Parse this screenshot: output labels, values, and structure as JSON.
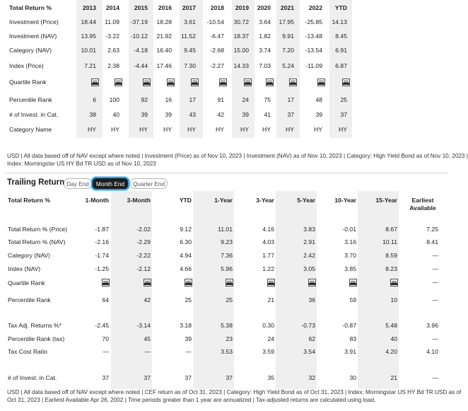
{
  "annual": {
    "header": [
      "Total Return %",
      "2013",
      "2014",
      "2015",
      "2016",
      "2017",
      "2018",
      "2019",
      "2020",
      "2021",
      "2022",
      "YTD"
    ],
    "rows": [
      {
        "label": "Investment (Price)",
        "values": [
          "18.44",
          "11.09",
          "-37.19",
          "18.28",
          "3.61",
          "-10.54",
          "30.72",
          "3.64",
          "17.95",
          "-25.85",
          "14.13"
        ]
      },
      {
        "label": "Investment (NAV)",
        "values": [
          "13.95",
          "-3.22",
          "-10.12",
          "21.92",
          "11.52",
          "-6.47",
          "18.37",
          "1.82",
          "9.91",
          "-13.48",
          "8.45"
        ]
      },
      {
        "label": "Category (NAV)",
        "values": [
          "10.01",
          "2.63",
          "-4.18",
          "16.40",
          "9.45",
          "-2.68",
          "15.00",
          "3.74",
          "7.20",
          "-13.54",
          "6.91"
        ]
      },
      {
        "label": "Index (Price)",
        "values": [
          "7.21",
          "2.38",
          "-4.44",
          "17.46",
          "7.30",
          "-2.27",
          "14.33",
          "7.03",
          "5.24",
          "-11.09",
          "6.87"
        ]
      },
      {
        "label": "Quartile Rank",
        "quartile": true
      },
      {
        "label": "Percentile Rank",
        "values": [
          "6",
          "100",
          "92",
          "16",
          "17",
          "91",
          "24",
          "75",
          "17",
          "48",
          "25"
        ]
      },
      {
        "label": "# of Invest. in Cat.",
        "values": [
          "38",
          "40",
          "39",
          "39",
          "43",
          "42",
          "39",
          "41",
          "37",
          "39",
          "37"
        ]
      },
      {
        "label": "Category Name",
        "values": [
          "HY",
          "HY",
          "HY",
          "HY",
          "HY",
          "HY",
          "HY",
          "HY",
          "HY",
          "HY",
          "HY"
        ]
      }
    ],
    "note_line1": "USD | All data based off of NAV except where noted | Investment (Price) as of Nov 10, 2023 | Investment (NAV) as of Nov 10, 2023 | Category: High Yield Bond as of Nov 10, 2023 |",
    "note_line2": "Index: Morningstar US HY Bd TR USD as of Nov 10, 2023"
  },
  "trailing": {
    "title": "Trailing Returns",
    "tabs": [
      "Day End",
      "Month End",
      "Quarter End"
    ],
    "active_tab": "Month End",
    "header_label": "Total Return %",
    "columns": [
      "1-Month",
      "3-Month",
      "YTD",
      "1-Year",
      "3-Year",
      "5-Year",
      "10-Year",
      "15-Year",
      "Earliest Available"
    ],
    "rows": [
      {
        "label": "Total Return % (Price)",
        "values": [
          "-1.87",
          "-2.02",
          "9.12",
          "11.01",
          "4.16",
          "3.83",
          "-0.01",
          "8.67",
          "7.25"
        ]
      },
      {
        "label": "Total Return % (NAV)",
        "values": [
          "-2.16",
          "-2.29",
          "6.30",
          "9.23",
          "4.03",
          "2.91",
          "3.16",
          "10.11",
          "8.41"
        ]
      },
      {
        "label": "Category (NAV)",
        "values": [
          "-1.74",
          "-2.22",
          "4.94",
          "7.36",
          "1.77",
          "2.42",
          "3.70",
          "8.59",
          "—"
        ]
      },
      {
        "label": "Index (NAV)",
        "values": [
          "-1.25",
          "-2.12",
          "4.66",
          "5.96",
          "1.22",
          "3.05",
          "3.85",
          "8.23",
          "—"
        ]
      },
      {
        "label": "Quartile Rank",
        "quartile": true
      },
      {
        "label": "Percentile Rank",
        "values": [
          "64",
          "42",
          "25",
          "25",
          "21",
          "36",
          "59",
          "10",
          "—"
        ]
      },
      {
        "label": "Tax Adj. Returns %*",
        "values": [
          "-2.45",
          "-3.14",
          "3.18",
          "5.38",
          "0.30",
          "-0.73",
          "-0.87",
          "5.48",
          "3.96"
        ]
      },
      {
        "label": "Percentile Rank (tax)",
        "values": [
          "70",
          "45",
          "39",
          "23",
          "24",
          "62",
          "83",
          "40",
          "—"
        ]
      },
      {
        "label": "Tax Cost Ratio",
        "values": [
          "—",
          "—",
          "—",
          "3.53",
          "3.59",
          "3.54",
          "3.91",
          "4.20",
          "4.10"
        ]
      },
      {
        "label": "# of Invest. in Cat.",
        "values": [
          "37",
          "37",
          "37",
          "37",
          "35",
          "32",
          "30",
          "21",
          "—"
        ]
      }
    ],
    "note_line1": "USD | All data based off of NAV except where noted | CEF return as of Oct 31, 2023 | Category: High Yield Bond as of Oct 31, 2023 | Index: Morningstar US HY Bd TR USD as of",
    "note_line2": "Oct 31, 2023 | Earliest Available Apr 26, 2002 | Time periods greater than 1 year are annualized | Tax-adjusted returns are calculated using load."
  }
}
